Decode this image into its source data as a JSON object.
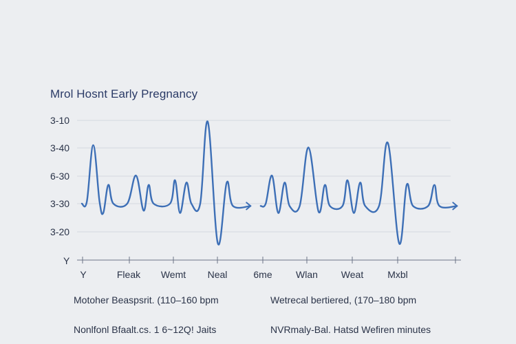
{
  "chart_data": {
    "type": "line",
    "title": "Mrol Hosnt Early Pregnancy",
    "y_tick_labels": [
      "3-10",
      "3-40",
      "6-30",
      "3-30",
      "3-20"
    ],
    "y_axis_end_label": "Y",
    "x_tick_labels": [
      "Y",
      "Fleak",
      "Wemt",
      "Neal",
      "6me",
      "Wlan",
      "Weat",
      "Mxbl"
    ],
    "grid": true,
    "series": [
      {
        "color": "#3d6fb6",
        "segments": [
          {
            "points": [
              [
                0,
                3.15
              ],
              [
                0.4,
                3.2
              ],
              [
                0.9,
                4.4
              ],
              [
                1.4,
                3.2
              ],
              [
                1.7,
                2.95
              ],
              [
                2.1,
                3.55
              ],
              [
                2.5,
                3.15
              ],
              [
                3.6,
                3.15
              ],
              [
                4.3,
                3.75
              ],
              [
                4.9,
                3.0
              ],
              [
                5.3,
                3.55
              ],
              [
                5.7,
                3.15
              ],
              [
                7.0,
                3.15
              ],
              [
                7.4,
                3.65
              ],
              [
                7.8,
                2.95
              ],
              [
                8.3,
                3.6
              ],
              [
                8.7,
                3.15
              ],
              [
                9.4,
                3.15
              ],
              [
                10.0,
                4.9
              ],
              [
                10.8,
                2.3
              ],
              [
                11.5,
                3.6
              ],
              [
                12.0,
                3.1
              ],
              [
                13.4,
                3.1
              ]
            ],
            "arrow": true
          },
          {
            "points": [
              [
                14.2,
                3.1
              ],
              [
                14.6,
                3.15
              ],
              [
                15.1,
                3.75
              ],
              [
                15.6,
                2.95
              ],
              [
                16.1,
                3.6
              ],
              [
                16.5,
                3.1
              ],
              [
                17.3,
                3.1
              ],
              [
                18.0,
                4.35
              ],
              [
                18.8,
                2.98
              ],
              [
                19.3,
                3.55
              ],
              [
                19.7,
                3.1
              ],
              [
                20.7,
                3.1
              ],
              [
                21.1,
                3.65
              ],
              [
                21.6,
                2.95
              ],
              [
                22.1,
                3.6
              ],
              [
                22.5,
                3.1
              ],
              [
                23.6,
                3.1
              ],
              [
                24.3,
                4.45
              ],
              [
                25.2,
                2.3
              ],
              [
                25.8,
                3.55
              ],
              [
                26.3,
                3.1
              ],
              [
                27.5,
                3.1
              ],
              [
                28.0,
                3.55
              ],
              [
                28.4,
                3.1
              ],
              [
                29.8,
                3.1
              ]
            ],
            "arrow": true
          }
        ]
      }
    ]
  },
  "notes": [
    "Motoher Beaspsrit. (110–160 bpm",
    "Wetrecal bertiered, (170–180 bpm",
    "Nonlfonl Bfaalt.cs. 1 6~12Q! Jaits",
    "NVRmaly-Bal. Hatsd Wefiren minutes"
  ]
}
